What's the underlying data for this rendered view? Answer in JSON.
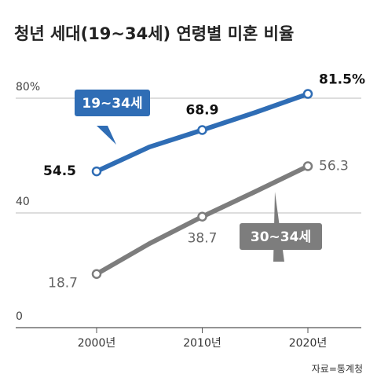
{
  "chart_data": {
    "type": "line",
    "title": "청년 세대(19~34세) 연령별 미혼 비율",
    "source": "자료=통계청",
    "categories": [
      "2000년",
      null,
      "2010년",
      null,
      "2020년"
    ],
    "series": [
      {
        "name": "19~34세",
        "color": "#2f6db5",
        "values": [
          54.5,
          63.0,
          68.9,
          75.0,
          81.5
        ],
        "value_labels": [
          "54.5",
          null,
          "68.9",
          null,
          "81.5%"
        ]
      },
      {
        "name": "30~34세",
        "color": "#7d7d7d",
        "values": [
          18.7,
          29.3,
          38.7,
          47.4,
          56.3
        ],
        "value_labels": [
          "18.7",
          null,
          "38.7",
          null,
          "56.3"
        ]
      }
    ],
    "ylim": [
      0,
      87
    ],
    "yticks": [
      0,
      40,
      {
        "value": 80,
        "label": "80%"
      }
    ],
    "grid": true
  }
}
